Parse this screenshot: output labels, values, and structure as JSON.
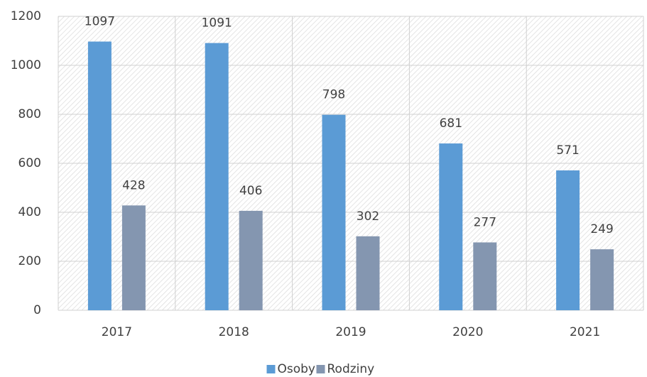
{
  "chart_data": {
    "type": "bar",
    "categories": [
      "2017",
      "2018",
      "2019",
      "2020",
      "2021"
    ],
    "series": [
      {
        "name": "Osoby",
        "color": "#5b9bd5",
        "values": [
          1097,
          1091,
          798,
          681,
          571
        ]
      },
      {
        "name": "Rodziny",
        "color": "#8496b0",
        "values": [
          428,
          406,
          302,
          277,
          249
        ]
      }
    ],
    "ylim": [
      0,
      1200
    ],
    "yticks": [
      0,
      200,
      400,
      600,
      800,
      1000,
      1200
    ],
    "grid": true,
    "legend": "bottom"
  }
}
